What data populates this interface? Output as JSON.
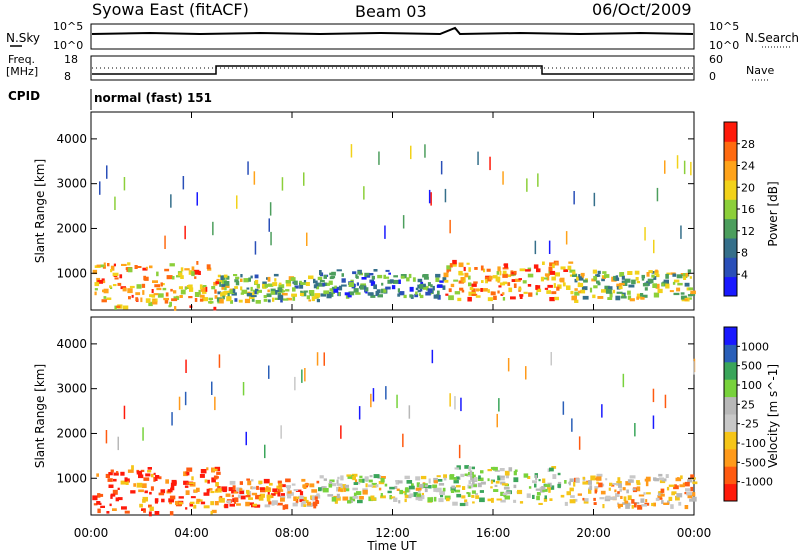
{
  "header": {
    "left": "Syowa East (fitACF)",
    "center": "Beam 03",
    "right": "06/Oct/2009"
  },
  "panels": {
    "noise": {
      "left_label": "N.Sky",
      "right_label": "N.Search",
      "left_ticks": [
        "10^5",
        "10^0"
      ],
      "right_ticks": [
        "10^5",
        "10^0"
      ]
    },
    "freq": {
      "left_label_line1": "Freq.",
      "left_label_line2": "[MHz]",
      "left_ticks": [
        "18",
        "8"
      ],
      "right_label": "Nave",
      "right_ticks": [
        "60",
        "0"
      ]
    },
    "cpid": {
      "label": "CPID",
      "text": "normal (fast) 151"
    }
  },
  "chart_data": [
    {
      "type": "heatmap",
      "title": "",
      "xlabel": "",
      "ylabel": "Slant Range [km]",
      "x_ticks": [
        "00:00",
        "04:00",
        "08:00",
        "12:00",
        "16:00",
        "20:00",
        "00:00"
      ],
      "y_ticks": [
        "1000",
        "2000",
        "3000",
        "4000"
      ],
      "xlim_hours": [
        0,
        24
      ],
      "ylim_km": [
        180,
        4600
      ],
      "colorbar": {
        "label": "Power [dB]",
        "ticks": [
          "28",
          "24",
          "20",
          "16",
          "12",
          "8",
          "4"
        ],
        "range": [
          0,
          30
        ],
        "colors": [
          "#1919ff",
          "#2a4fb8",
          "#356f8a",
          "#4c9e5d",
          "#8ccf3a",
          "#f2d21a",
          "#ffa31a",
          "#ff6a10",
          "#ff1a0a"
        ]
      },
      "bands": [
        {
          "t0": 0,
          "t1": 5,
          "r0": 250,
          "r1": 1300,
          "level": 0.7
        },
        {
          "t0": 5,
          "t1": 9,
          "r0": 400,
          "r1": 1000,
          "level": 0.45
        },
        {
          "t0": 9,
          "t1": 14,
          "r0": 500,
          "r1": 1100,
          "level": 0.3
        },
        {
          "t0": 14,
          "t1": 19,
          "r0": 450,
          "r1": 1300,
          "level": 0.75
        },
        {
          "t0": 19,
          "t1": 24,
          "r0": 400,
          "r1": 1100,
          "level": 0.5
        }
      ]
    },
    {
      "type": "heatmap",
      "title": "",
      "xlabel": "Time UT",
      "ylabel": "Slant Range [km]",
      "x_ticks": [
        "00:00",
        "04:00",
        "08:00",
        "12:00",
        "16:00",
        "20:00",
        "00:00"
      ],
      "y_ticks": [
        "1000",
        "2000",
        "3000",
        "4000"
      ],
      "xlim_hours": [
        0,
        24
      ],
      "ylim_km": [
        180,
        4600
      ],
      "colorbar": {
        "label": "Velocity [m s^-1]",
        "ticks": [
          "1000",
          "500",
          "100",
          "25",
          "-25",
          "-100",
          "-500",
          "-1000"
        ],
        "range": [
          -1000,
          1000
        ],
        "colors": [
          "#ff1a0a",
          "#ff5a10",
          "#ff9a1a",
          "#f5c518",
          "#c8c8c8",
          "#b8b8b8",
          "#78d23c",
          "#3aa55a",
          "#2a5fb8",
          "#1919ff"
        ]
      },
      "bands": [
        {
          "t0": 0,
          "t1": 5,
          "r0": 250,
          "r1": 1300,
          "level": 0.15
        },
        {
          "t0": 5,
          "t1": 9,
          "r0": 400,
          "r1": 1000,
          "level": 0.25
        },
        {
          "t0": 9,
          "t1": 14,
          "r0": 500,
          "r1": 1100,
          "level": 0.5
        },
        {
          "t0": 14,
          "t1": 19,
          "r0": 450,
          "r1": 1300,
          "level": 0.55
        },
        {
          "t0": 19,
          "t1": 24,
          "r0": 400,
          "r1": 1100,
          "level": 0.35
        }
      ]
    }
  ]
}
